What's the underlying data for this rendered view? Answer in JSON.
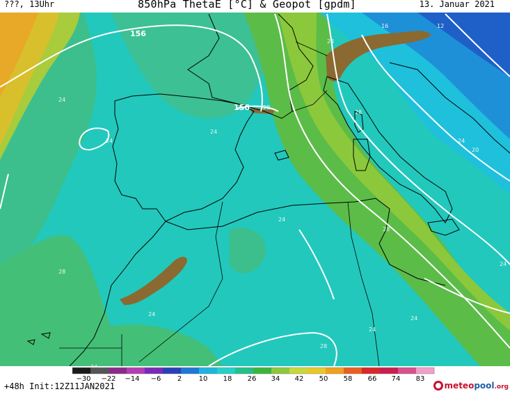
{
  "header": {
    "left": "???, 13Uhr",
    "title": "850hPa ThetaE [°C] & Geopot [gpdm]",
    "date": "13. Januar 2021"
  },
  "map": {
    "geopot_labels": [
      "156",
      "156"
    ],
    "thetae_labels": [
      "24",
      "24",
      "24",
      "24",
      "24",
      "24",
      "24",
      "24",
      "24",
      "24",
      "24",
      "28",
      "28",
      "28",
      "28",
      "28",
      "16",
      "12",
      "20"
    ]
  },
  "colorbar": {
    "ticks": [
      "−30",
      "−22",
      "−14",
      "−6",
      "2",
      "10",
      "18",
      "26",
      "34",
      "42",
      "50",
      "58",
      "66",
      "74",
      "83"
    ],
    "colors": [
      "#1a1a1a",
      "#555555",
      "#8a2a8a",
      "#b43cb4",
      "#7a2ab8",
      "#2a40b8",
      "#1e78d8",
      "#1eb4e0",
      "#24d0c8",
      "#22c08a",
      "#3cb43c",
      "#8cc83c",
      "#c8d83c",
      "#e8c828",
      "#f0a020",
      "#e86020",
      "#d82828",
      "#c81e50",
      "#d8508c",
      "#f0a0c8"
    ]
  },
  "footer": {
    "init": "+48h Init:12Z11JAN2021",
    "brand_1": "meteo",
    "brand_2": "pool",
    "brand_3": ".org"
  }
}
